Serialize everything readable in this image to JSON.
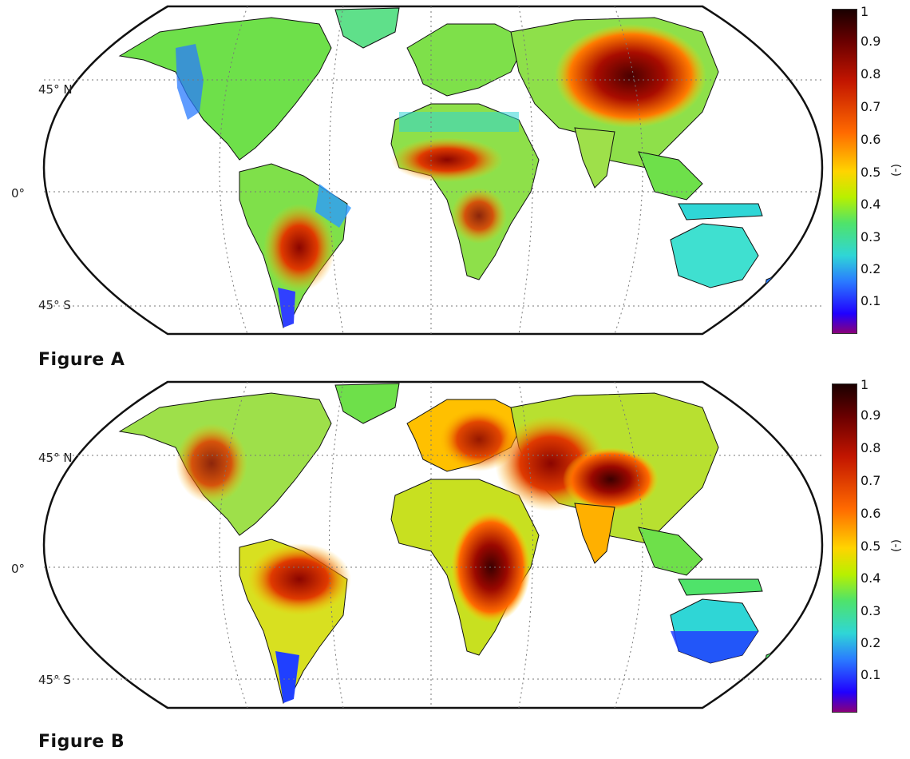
{
  "figures": [
    {
      "caption": "Figure A",
      "lat_labels": [
        "45° N",
        "0°",
        "45° S"
      ],
      "colorbar": {
        "ticks": [
          "1",
          "0.9",
          "0.8",
          "0.7",
          "0.6",
          "0.5",
          "0.4",
          "0.3",
          "0.2",
          "0.1"
        ],
        "unit": "(-)",
        "range": [
          0,
          1
        ],
        "colormap": "jet"
      },
      "hotspots": [
        {
          "region": "Central Asia / Mongolia",
          "level": 0.85
        },
        {
          "region": "Sahel / West Africa",
          "level": 0.7
        },
        {
          "region": "Central-south South America",
          "level": 0.75
        },
        {
          "region": "Southern Africa",
          "level": 0.65
        }
      ]
    },
    {
      "caption": "Figure B",
      "lat_labels": [
        "45° N",
        "0°",
        "45° S"
      ],
      "colorbar": {
        "ticks": [
          "1",
          "0.9",
          "0.8",
          "0.7",
          "0.6",
          "0.5",
          "0.4",
          "0.3",
          "0.2",
          "0.1"
        ],
        "unit": "(-)",
        "range": [
          0,
          1
        ],
        "colormap": "jet"
      },
      "hotspots": [
        {
          "region": "Himalaya / South Asia",
          "level": 0.9
        },
        {
          "region": "East Africa",
          "level": 0.9
        },
        {
          "region": "Amazon basin",
          "level": 0.8
        },
        {
          "region": "Middle East",
          "level": 0.75
        }
      ]
    }
  ],
  "colors": {
    "jet": [
      "#1a0000",
      "#6b0000",
      "#c21500",
      "#ff6a00",
      "#ffd400",
      "#b8f000",
      "#4fe36a",
      "#2fd6d6",
      "#2a7bff",
      "#2000ff",
      "#8a007a"
    ],
    "outline": "#111111",
    "grid": "#777777"
  }
}
